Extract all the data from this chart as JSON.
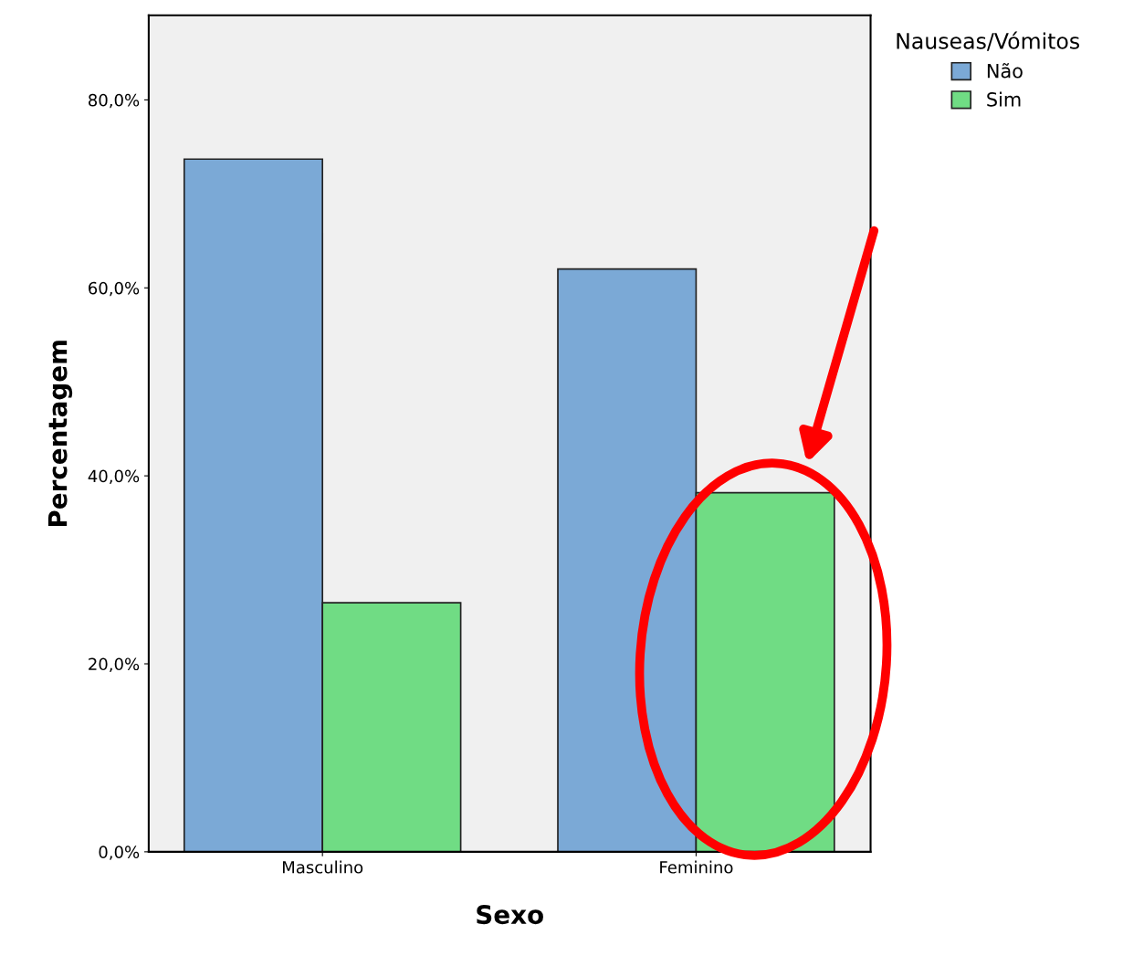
{
  "chart_data": {
    "type": "bar",
    "xlabel": "Sexo",
    "ylabel": "Percentagem",
    "legend_title": "Nauseas/Vómitos",
    "categories": [
      "Masculino",
      "Feminino"
    ],
    "series": [
      {
        "name": "Não",
        "color": "#7ba9d6",
        "values": [
          73.7,
          62.0
        ]
      },
      {
        "name": "Sim",
        "color": "#70dc84",
        "values": [
          26.5,
          38.2
        ]
      }
    ],
    "ylim": [
      0,
      89
    ],
    "yticks": [
      {
        "value": 0,
        "label": "0,0%"
      },
      {
        "value": 20,
        "label": "20,0%"
      },
      {
        "value": 40,
        "label": "40,0%"
      },
      {
        "value": 60,
        "label": "60,0%"
      },
      {
        "value": 80,
        "label": "80,0%"
      }
    ],
    "grid": false,
    "legend": "top right"
  }
}
